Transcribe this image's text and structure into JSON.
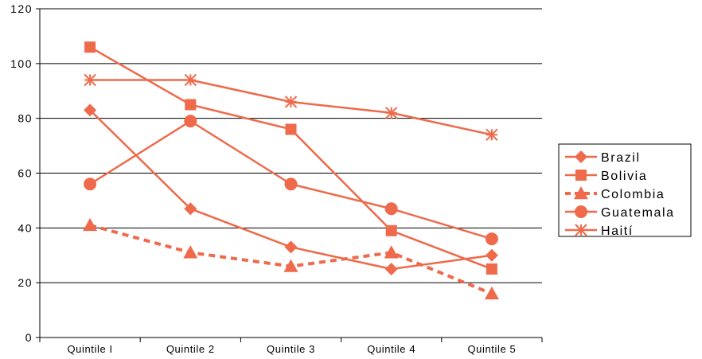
{
  "chart_data": {
    "type": "line",
    "categories": [
      "Quintile I",
      "Quintile 2",
      "Quintile 3",
      "Quintile 4",
      "Quintile 5"
    ],
    "ylim": [
      0,
      120
    ],
    "yticks": [
      0,
      20,
      40,
      60,
      80,
      100,
      120
    ],
    "ytick_labels": [
      "0",
      "20",
      "40",
      "60",
      "80",
      "100",
      "120"
    ],
    "grid": true,
    "legend_position": "right",
    "series": [
      {
        "name": "Brazil",
        "values": [
          83,
          47,
          33,
          25,
          30
        ],
        "marker": "diamond",
        "dash": false
      },
      {
        "name": "Bolivia",
        "values": [
          106,
          85,
          76,
          39,
          25
        ],
        "marker": "square",
        "dash": false
      },
      {
        "name": "Colombia",
        "values": [
          41,
          31,
          26,
          31,
          16
        ],
        "marker": "triangle",
        "dash": true
      },
      {
        "name": "Guatemala",
        "values": [
          56,
          79,
          56,
          47,
          36
        ],
        "marker": "circle",
        "dash": false
      },
      {
        "name": "Haití",
        "values": [
          94,
          94,
          86,
          82,
          74
        ],
        "marker": "star",
        "dash": false
      }
    ],
    "color": "#EE6A4B"
  }
}
